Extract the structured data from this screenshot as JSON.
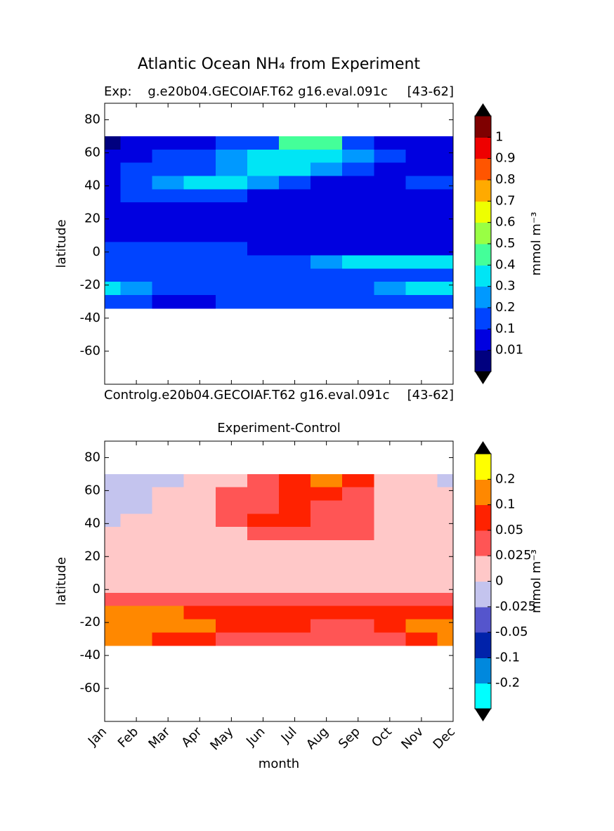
{
  "title": "Atlantic Ocean NH₄ from Experiment",
  "chart_data": [
    {
      "type": "contour",
      "left_title": "Exp:    g.e20b04.GECOIAF.T62 g16.eval.091c",
      "right_title": "[43-62]",
      "bottom_left_text": "Controlg.e20b04.GECOIAF.T62 g16.eval.091c",
      "bottom_right_text": "[43-62]",
      "y_label": "latitude",
      "ylim": [
        -80,
        90
      ],
      "yticks": [
        -60,
        -40,
        -20,
        0,
        20,
        40,
        60,
        80
      ],
      "latitudes": [
        66,
        58,
        50,
        42,
        34,
        26,
        18,
        10,
        2,
        -6,
        -14,
        -22,
        -30
      ],
      "values": [
        [
          0.005,
          0.05,
          0.05,
          0.05,
          0.15,
          0.15,
          0.45,
          0.45,
          0.15,
          0.05,
          0.05,
          0.05
        ],
        [
          0.05,
          0.05,
          0.15,
          0.15,
          0.25,
          0.35,
          0.35,
          0.35,
          0.25,
          0.15,
          0.05,
          0.05
        ],
        [
          0.05,
          0.15,
          0.15,
          0.15,
          0.25,
          0.35,
          0.35,
          0.25,
          0.15,
          0.05,
          0.05,
          0.05
        ],
        [
          0.05,
          0.15,
          0.25,
          0.35,
          0.35,
          0.25,
          0.15,
          0.05,
          0.05,
          0.05,
          0.15,
          0.15
        ],
        [
          0.05,
          0.15,
          0.15,
          0.15,
          0.15,
          0.05,
          0.05,
          0.05,
          0.05,
          0.05,
          0.05,
          0.05
        ],
        [
          0.05,
          0.05,
          0.05,
          0.05,
          0.05,
          0.05,
          0.05,
          0.05,
          0.05,
          0.05,
          0.05,
          0.05
        ],
        [
          0.05,
          0.05,
          0.05,
          0.05,
          0.05,
          0.05,
          0.05,
          0.05,
          0.05,
          0.05,
          0.05,
          0.05
        ],
        [
          0.05,
          0.05,
          0.05,
          0.05,
          0.05,
          0.05,
          0.05,
          0.05,
          0.05,
          0.05,
          0.05,
          0.05
        ],
        [
          0.15,
          0.15,
          0.15,
          0.15,
          0.15,
          0.05,
          0.05,
          0.05,
          0.05,
          0.05,
          0.05,
          0.05
        ],
        [
          0.15,
          0.15,
          0.15,
          0.15,
          0.15,
          0.15,
          0.15,
          0.25,
          0.35,
          0.35,
          0.35,
          0.35
        ],
        [
          0.15,
          0.15,
          0.15,
          0.15,
          0.15,
          0.15,
          0.15,
          0.15,
          0.15,
          0.15,
          0.15,
          0.15
        ],
        [
          0.35,
          0.25,
          0.15,
          0.15,
          0.15,
          0.15,
          0.15,
          0.15,
          0.15,
          0.25,
          0.35,
          0.35
        ],
        [
          0.15,
          0.15,
          0.05,
          0.05,
          0.15,
          0.15,
          0.15,
          0.15,
          0.15,
          0.15,
          0.15,
          0.15
        ]
      ],
      "levels": [
        0.01,
        0.1,
        0.2,
        0.3,
        0.4,
        0.5,
        0.6,
        0.7,
        0.8,
        0.9,
        1
      ],
      "colors": [
        "#00007f",
        "#0000e0",
        "#0044ff",
        "#0099ff",
        "#00e5f5",
        "#44ff99",
        "#99ff44",
        "#eeff00",
        "#ffaa00",
        "#ff5500",
        "#ee0000",
        "#7f0000"
      ],
      "cbar_label": "mmol m⁻³"
    },
    {
      "type": "contour",
      "title": "Experiment-Control",
      "x_label": "month",
      "y_label": "latitude",
      "categories": [
        "Jan",
        "Feb",
        "Mar",
        "Apr",
        "May",
        "Jun",
        "Jul",
        "Aug",
        "Sep",
        "Oct",
        "Nov",
        "Dec"
      ],
      "ylim": [
        -80,
        90
      ],
      "yticks": [
        -60,
        -40,
        -20,
        0,
        20,
        40,
        60,
        80
      ],
      "latitudes": [
        66,
        58,
        50,
        42,
        34,
        26,
        18,
        10,
        2,
        -6,
        -14,
        -22,
        -30
      ],
      "values": [
        [
          -0.01,
          -0.01,
          -0.01,
          0.01,
          0.01,
          0.03,
          0.06,
          0.15,
          0.06,
          0.01,
          0.01,
          -0.01
        ],
        [
          -0.01,
          -0.01,
          0.01,
          0.01,
          0.03,
          0.03,
          0.06,
          0.06,
          0.03,
          0.01,
          0.01,
          0.01
        ],
        [
          -0.01,
          -0.01,
          0.01,
          0.01,
          0.03,
          0.03,
          0.06,
          0.03,
          0.03,
          0.01,
          0.01,
          0.01
        ],
        [
          -0.01,
          0.01,
          0.01,
          0.01,
          0.03,
          0.06,
          0.06,
          0.03,
          0.03,
          0.01,
          0.01,
          0.01
        ],
        [
          0.01,
          0.01,
          0.01,
          0.01,
          0.01,
          0.03,
          0.03,
          0.03,
          0.03,
          0.01,
          0.01,
          0.01
        ],
        [
          0.01,
          0.01,
          0.01,
          0.01,
          0.01,
          0.01,
          0.01,
          0.01,
          0.01,
          0.01,
          0.01,
          0.01
        ],
        [
          0.01,
          0.01,
          0.01,
          0.01,
          0.01,
          0.01,
          0.01,
          0.01,
          0.01,
          0.01,
          0.01,
          0.01
        ],
        [
          0.01,
          0.01,
          0.01,
          0.01,
          0.01,
          0.01,
          0.01,
          0.01,
          0.01,
          0.01,
          0.01,
          0.01
        ],
        [
          0.01,
          0.01,
          0.01,
          0.01,
          0.01,
          0.01,
          0.01,
          0.01,
          0.01,
          0.01,
          0.01,
          0.01
        ],
        [
          0.03,
          0.03,
          0.03,
          0.03,
          0.03,
          0.03,
          0.03,
          0.03,
          0.03,
          0.03,
          0.03,
          0.03
        ],
        [
          0.15,
          0.15,
          0.15,
          0.06,
          0.06,
          0.06,
          0.06,
          0.06,
          0.06,
          0.06,
          0.06,
          0.06
        ],
        [
          0.15,
          0.15,
          0.15,
          0.15,
          0.06,
          0.06,
          0.06,
          0.03,
          0.03,
          0.06,
          0.15,
          0.15
        ],
        [
          0.15,
          0.15,
          0.06,
          0.06,
          0.03,
          0.03,
          0.03,
          0.03,
          0.03,
          0.03,
          0.06,
          0.15
        ]
      ],
      "levels": [
        -0.2,
        -0.1,
        -0.05,
        -0.025,
        0,
        0.025,
        0.05,
        0.1,
        0.2
      ],
      "colors": [
        "#00ffff",
        "#0088dd",
        "#0022aa",
        "#5555cc",
        "#c4c4ee",
        "#ffc8c8",
        "#ff5555",
        "#ff2200",
        "#ff8800",
        "#ffff00"
      ],
      "cbar_label": "mmol m⁻³"
    }
  ]
}
